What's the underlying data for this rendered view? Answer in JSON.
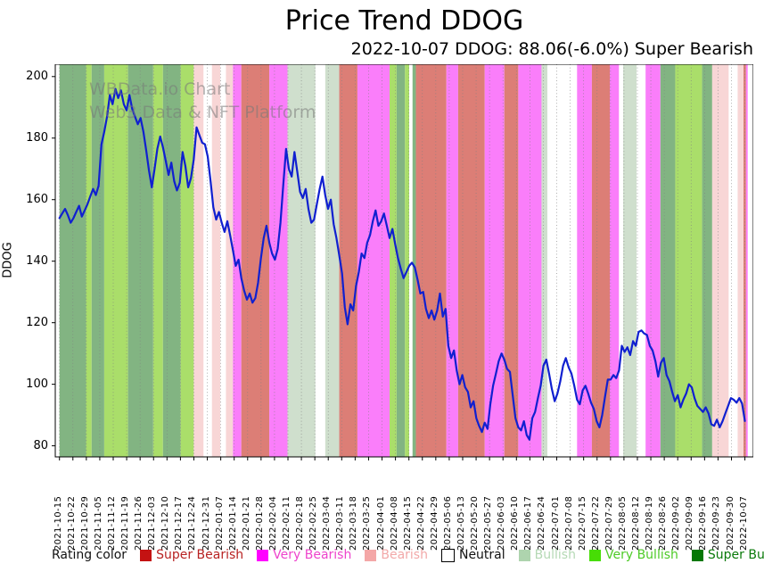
{
  "header": {
    "title": "Price Trend DDOG",
    "subtitle": "2022-10-07 DDOG: 88.06(-6.0%) Super Bearish"
  },
  "watermark": {
    "line1": "WBData.io Chart",
    "line2": "Web3 Data & NFT Platform"
  },
  "legend": {
    "prefix": "Rating color",
    "items": [
      {
        "label": "Super Bearish",
        "swatch": "#c41212",
        "text_color": "#b82222",
        "border": "none"
      },
      {
        "label": "Very Bearish",
        "swatch": "#ff00ff",
        "text_color": "#ee44cc",
        "border": "none"
      },
      {
        "label": "Bearish",
        "swatch": "#f4a7a7",
        "text_color": "#f2a9a9",
        "border": "none"
      },
      {
        "label": "Neutral",
        "swatch": "#ffffff",
        "text_color": "#111111",
        "border": "1px solid #000"
      },
      {
        "label": "Bullish",
        "swatch": "#aed4ae",
        "text_color": "#b5d9b5",
        "border": "none"
      },
      {
        "label": "Very Bullish",
        "swatch": "#47dd05",
        "text_color": "#4ecb28",
        "border": "none"
      },
      {
        "label": "Super Bullish",
        "swatch": "#067806",
        "text_color": "#0a7a0a",
        "border": "none"
      }
    ]
  },
  "chart_data": {
    "type": "line",
    "title": "Price Trend DDOG",
    "ylabel": "DDOG",
    "line_color": "#1020d0",
    "line_width": 2.2,
    "grid": "weekly vertical dotted",
    "grid_color": "#808080",
    "ylim": [
      76.4,
      204
    ],
    "yticks": [
      80,
      100,
      120,
      140,
      160,
      180,
      200
    ],
    "xlim_days": [
      -1.5,
      248
    ],
    "n_points": 246,
    "x_tick_labels": [
      "2021-10-15",
      "2021-10-22",
      "2021-10-29",
      "2021-11-05",
      "2021-11-12",
      "2021-11-19",
      "2021-11-26",
      "2021-12-03",
      "2021-12-10",
      "2021-12-17",
      "2021-12-24",
      "2021-12-31",
      "2022-01-07",
      "2022-01-14",
      "2022-01-21",
      "2022-01-28",
      "2022-02-04",
      "2022-02-11",
      "2022-02-18",
      "2022-02-25",
      "2022-03-04",
      "2022-03-11",
      "2022-03-18",
      "2022-03-25",
      "2022-04-01",
      "2022-04-08",
      "2022-04-15",
      "2022-04-22",
      "2022-04-29",
      "2022-05-06",
      "2022-05-13",
      "2022-05-20",
      "2022-05-27",
      "2022-06-03",
      "2022-06-10",
      "2022-06-17",
      "2022-06-24",
      "2022-07-01",
      "2022-07-08",
      "2022-07-15",
      "2022-07-22",
      "2022-07-29",
      "2022-08-05",
      "2022-08-12",
      "2022-08-19",
      "2022-08-26",
      "2022-09-02",
      "2022-09-09",
      "2022-09-16",
      "2022-09-23",
      "2022-09-30",
      "2022-10-07"
    ],
    "values": [
      154,
      155.5,
      157,
      155,
      152.5,
      154,
      156,
      158,
      154.5,
      156.5,
      158.5,
      161,
      163.5,
      161.5,
      164.5,
      178,
      182,
      187,
      194,
      191,
      196,
      193,
      195.5,
      191,
      189,
      194,
      189.5,
      187,
      184.5,
      186.5,
      182,
      176,
      169.5,
      164,
      170,
      176.5,
      180.5,
      177,
      172.5,
      168,
      172,
      166,
      163,
      165.5,
      175.5,
      171,
      164,
      167,
      173,
      183.5,
      181,
      178.5,
      178,
      174,
      166,
      157.5,
      153.5,
      156,
      152.5,
      149.5,
      153,
      148.5,
      143.5,
      138.5,
      140.5,
      134.5,
      130.5,
      127.5,
      129.5,
      126.5,
      128,
      133,
      141,
      147.5,
      151.5,
      146,
      142.5,
      140.5,
      144,
      152.5,
      165,
      176.5,
      170,
      167.5,
      175.5,
      169,
      162.5,
      160.5,
      163.5,
      157,
      152.5,
      153.5,
      158.5,
      163.5,
      167.5,
      161.5,
      157,
      160,
      152,
      147.5,
      142,
      136,
      125,
      119.5,
      126,
      124,
      132,
      136.5,
      142.5,
      141,
      146,
      148.5,
      153,
      156.5,
      151.5,
      153,
      155.5,
      151.5,
      147.5,
      150.5,
      145.5,
      141,
      137.5,
      134.5,
      136.5,
      138.5,
      139.5,
      138,
      134,
      129.5,
      130,
      124.5,
      121.5,
      124,
      121,
      124,
      129.5,
      122,
      124.5,
      112.5,
      108.5,
      111,
      104.5,
      100,
      103,
      99,
      97.5,
      92.5,
      94.5,
      89,
      86.5,
      84.5,
      87.5,
      85.5,
      93.5,
      99.5,
      103.5,
      107.5,
      110,
      108,
      105,
      104,
      96.5,
      89,
      86,
      85,
      88,
      83.5,
      82,
      89,
      91,
      95.5,
      99.5,
      106,
      108,
      103.5,
      98.5,
      94.5,
      97,
      101,
      106,
      108.5,
      105.5,
      103.5,
      99.5,
      95,
      93.5,
      98,
      99.5,
      97,
      94,
      92,
      88,
      86,
      90,
      96,
      101.5,
      101.5,
      103,
      102,
      104.5,
      112.5,
      110.5,
      112,
      109.5,
      114,
      112.5,
      117,
      117.5,
      116.5,
      116,
      112.5,
      111,
      107.5,
      102.5,
      107,
      108.5,
      103,
      101,
      97.5,
      94.5,
      96.5,
      92.5,
      95,
      97,
      100,
      99,
      95.5,
      93,
      92,
      91,
      92.5,
      90.5,
      87,
      86.5,
      88.5,
      86,
      88,
      90.5,
      93,
      95.5,
      95,
      94,
      95.5,
      93.7,
      88.06
    ],
    "rating_band_colors": {
      "super_bearish": "#dc7e76",
      "very_bearish": "#fa7efa",
      "bearish": "#f8d6d6",
      "neutral": "#ffffff",
      "bullish": "#cfdfcd",
      "very_bullish": "#aade6a",
      "super_bullish": "#82b482"
    },
    "bands": [
      [
        0,
        9.5,
        "super_bullish"
      ],
      [
        9.5,
        11.5,
        "very_bullish"
      ],
      [
        11.5,
        16,
        "super_bullish"
      ],
      [
        16,
        24.5,
        "very_bullish"
      ],
      [
        24.5,
        33.5,
        "super_bullish"
      ],
      [
        33.5,
        37,
        "very_bullish"
      ],
      [
        37,
        43.3,
        "super_bullish"
      ],
      [
        43.3,
        48,
        "very_bullish"
      ],
      [
        48,
        51.5,
        "bearish"
      ],
      [
        51.5,
        54.5,
        "neutral"
      ],
      [
        54.5,
        57.5,
        "bearish"
      ],
      [
        57.5,
        59.5,
        "neutral"
      ],
      [
        59.5,
        62,
        "bearish"
      ],
      [
        62,
        65,
        "very_bearish"
      ],
      [
        65,
        75,
        "super_bearish"
      ],
      [
        75,
        81.5,
        "very_bearish"
      ],
      [
        81.5,
        91.5,
        "bullish"
      ],
      [
        91.5,
        95,
        "neutral"
      ],
      [
        95,
        100,
        "bullish"
      ],
      [
        100,
        106.5,
        "super_bearish"
      ],
      [
        106.5,
        118,
        "very_bearish"
      ],
      [
        118,
        120.5,
        "very_bullish"
      ],
      [
        120.5,
        123.5,
        "super_bullish"
      ],
      [
        123.5,
        125,
        "very_bullish"
      ],
      [
        125,
        126.2,
        "neutral"
      ],
      [
        126.2,
        127.4,
        "super_bullish"
      ],
      [
        127.4,
        138.3,
        "super_bearish"
      ],
      [
        138.3,
        142.5,
        "very_bearish"
      ],
      [
        142.5,
        152,
        "super_bearish"
      ],
      [
        152,
        159,
        "very_bearish"
      ],
      [
        159,
        164,
        "super_bearish"
      ],
      [
        164,
        172.3,
        "very_bearish"
      ],
      [
        172.3,
        174.4,
        "bullish"
      ],
      [
        174.4,
        185,
        "neutral"
      ],
      [
        185,
        190.3,
        "very_bearish"
      ],
      [
        190.3,
        196.7,
        "super_bearish"
      ],
      [
        196.7,
        200,
        "very_bearish"
      ],
      [
        200,
        201.5,
        "neutral"
      ],
      [
        201.5,
        206.3,
        "bullish"
      ],
      [
        206.3,
        209.5,
        "neutral"
      ],
      [
        209.5,
        214.8,
        "very_bearish"
      ],
      [
        214.8,
        220.1,
        "super_bullish"
      ],
      [
        220.1,
        229.7,
        "very_bullish"
      ],
      [
        229.7,
        233.3,
        "super_bullish"
      ],
      [
        233.3,
        239.2,
        "bearish"
      ],
      [
        239.2,
        242.4,
        "neutral"
      ],
      [
        242.4,
        244.5,
        "bearish"
      ],
      [
        244.5,
        245.4,
        "super_bearish"
      ],
      [
        245.4,
        246,
        "very_bearish"
      ]
    ]
  }
}
